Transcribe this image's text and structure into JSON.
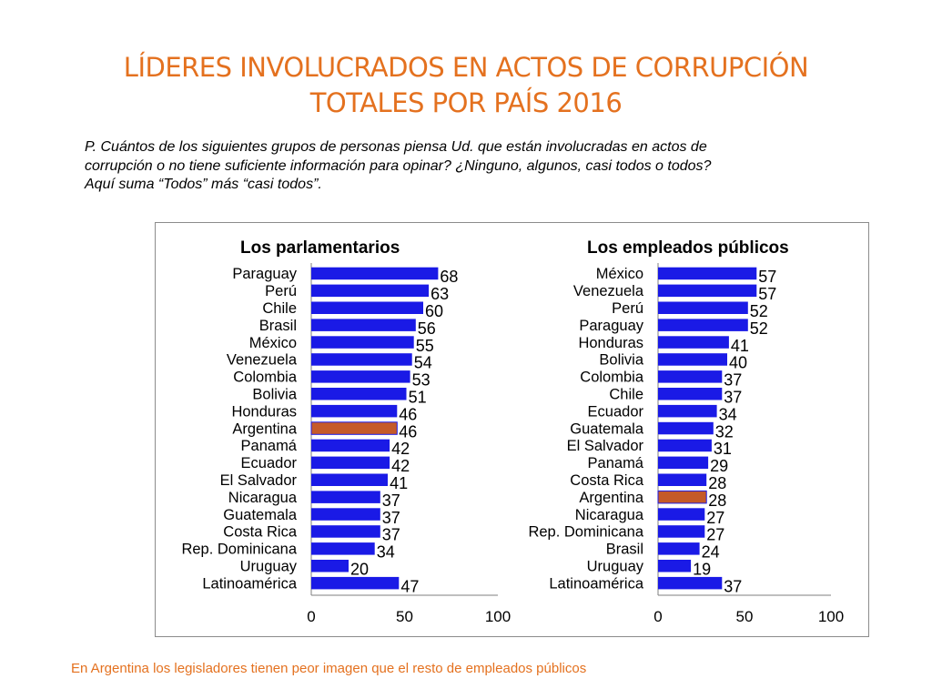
{
  "slide": {
    "title_line1": "LÍDERES INVOLUCRADOS EN ACTOS DE CORRUPCIÓN",
    "title_line2": "TOTALES POR PAÍS 2016",
    "question_line1": "P. Cuántos de los siguientes grupos de personas piensa Ud. que están involucradas en actos de",
    "question_line2": "corrupción o no tiene suficiente información para opinar? ¿Ninguno, algunos, casi todos o todos?",
    "question_line3": "Aquí suma “Todos” más “casi todos”.",
    "footer": "En Argentina los legisladores tienen peor imagen que el resto de empleados públicos"
  },
  "colors": {
    "title": "#E4711F",
    "bar": "#1A1AE6",
    "bar_highlight": "#C55A28",
    "footer": "#E4711F"
  },
  "chart_data": [
    {
      "type": "bar",
      "orientation": "horizontal",
      "title": "Los parlamentarios",
      "categories": [
        "Paraguay",
        "Perú",
        "Chile",
        "Brasil",
        "México",
        "Venezuela",
        "Colombia",
        "Bolivia",
        "Honduras",
        "Argentina",
        "Panamá",
        "Ecuador",
        "El Salvador",
        "Nicaragua",
        "Guatemala",
        "Costa Rica",
        "Rep. Dominicana",
        "Uruguay",
        "Latinoamérica"
      ],
      "values": [
        68,
        63,
        60,
        56,
        55,
        54,
        53,
        51,
        46,
        46,
        42,
        42,
        41,
        37,
        37,
        37,
        34,
        20,
        47
      ],
      "highlight": "Argentina",
      "xlim": [
        0,
        100
      ],
      "xticks": [
        0,
        50,
        100
      ]
    },
    {
      "type": "bar",
      "orientation": "horizontal",
      "title": "Los empleados públicos",
      "categories": [
        "México",
        "Venezuela",
        "Perú",
        "Paraguay",
        "Honduras",
        "Bolivia",
        "Colombia",
        "Chile",
        "Ecuador",
        "Guatemala",
        "El Salvador",
        "Panamá",
        "Costa Rica",
        "Argentina",
        "Nicaragua",
        "Rep. Dominicana",
        "Brasil",
        "Uruguay",
        "Latinoamérica"
      ],
      "values": [
        57,
        57,
        52,
        52,
        41,
        40,
        37,
        37,
        34,
        32,
        31,
        29,
        28,
        28,
        27,
        27,
        24,
        19,
        37
      ],
      "highlight": "Argentina",
      "xlim": [
        0,
        100
      ],
      "xticks": [
        0,
        50,
        100
      ]
    }
  ]
}
